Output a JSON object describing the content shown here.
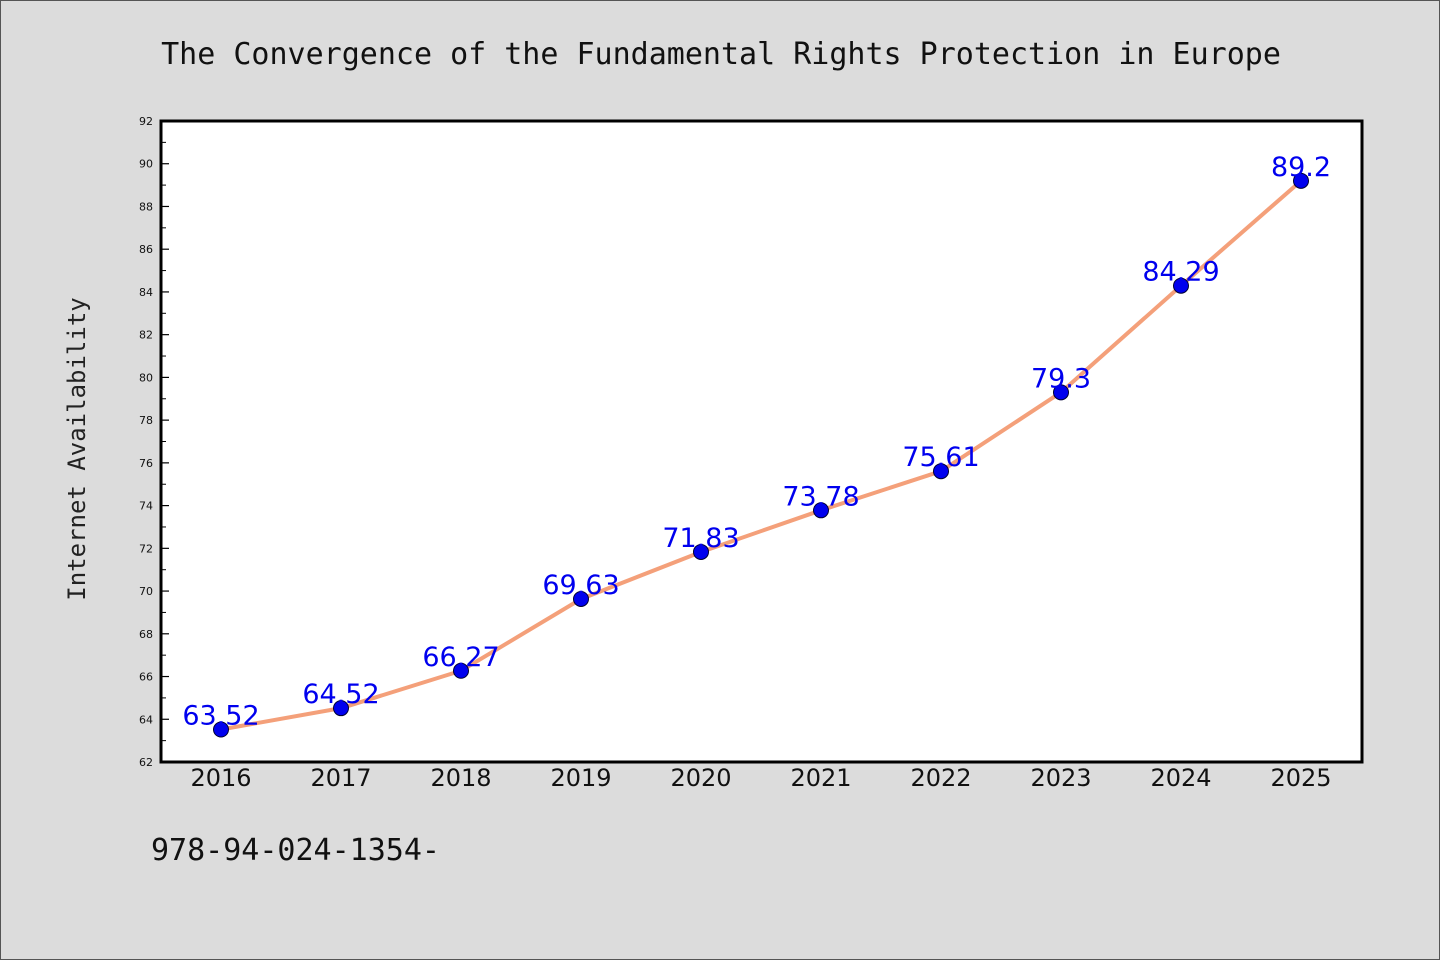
{
  "footer_code": "978-94-024-1354-",
  "chart_data": {
    "type": "line",
    "title": "The Convergence of the Fundamental Rights Protection in Europe",
    "xlabel": "",
    "ylabel": "Internet Availability",
    "categories": [
      "2016",
      "2017",
      "2018",
      "2019",
      "2020",
      "2021",
      "2022",
      "2023",
      "2024",
      "2025"
    ],
    "series": [
      {
        "values": [
          63.52,
          64.52,
          66.27,
          69.63,
          71.83,
          73.78,
          75.61,
          79.3,
          84.29,
          89.2
        ],
        "line_color": "#f4a07a",
        "marker_color": "#0000ee"
      }
    ],
    "data_labels": [
      "63.52",
      "64.52",
      "66.27",
      "69.63",
      "71.83",
      "73.78",
      "75.61",
      "79.3",
      "84.29",
      "89.2"
    ],
    "ylim": [
      62,
      92
    ],
    "y_ticks": [
      "62",
      "64",
      "66",
      "68",
      "70",
      "72",
      "74",
      "76",
      "78",
      "80",
      "82",
      "84",
      "86",
      "88",
      "90",
      "92"
    ],
    "grid": false,
    "label_color": "#0000ee"
  }
}
